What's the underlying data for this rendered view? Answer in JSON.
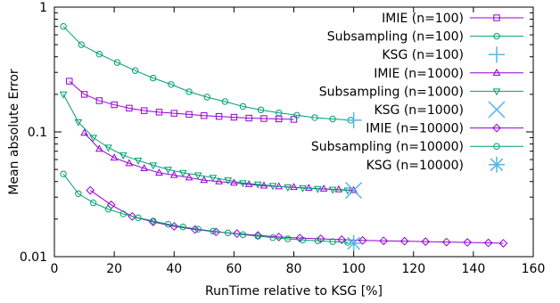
{
  "chart_data": {
    "type": "line",
    "xlabel": "RunTime relative to KSG [%]",
    "ylabel": "Mean absolute Error",
    "xlim": [
      0,
      160
    ],
    "ylim": [
      0.01,
      1
    ],
    "yscale": "log",
    "x_ticks": [
      "0",
      "20",
      "40",
      "60",
      "80",
      "100",
      "120",
      "140",
      "160"
    ],
    "y_ticks": [
      "0.01",
      "0.1",
      "1"
    ],
    "legend_position": "top-right",
    "series": [
      {
        "name": "IMIE (n=100)",
        "color": "#9400d3",
        "marker": "square",
        "x": [
          5,
          10,
          15,
          20,
          25,
          30,
          35,
          40,
          45,
          50,
          55,
          60,
          65,
          70,
          75,
          80
        ],
        "y": [
          0.255,
          0.2,
          0.178,
          0.165,
          0.155,
          0.148,
          0.144,
          0.141,
          0.138,
          0.135,
          0.133,
          0.131,
          0.129,
          0.128,
          0.127,
          0.126
        ]
      },
      {
        "name": "Subsampling (n=100)",
        "color": "#009e73",
        "marker": "circle",
        "x": [
          3,
          9,
          15,
          21,
          27,
          33,
          39,
          45,
          51,
          57,
          63,
          69,
          75,
          81,
          87,
          93,
          99
        ],
        "y": [
          0.7,
          0.5,
          0.42,
          0.36,
          0.31,
          0.27,
          0.24,
          0.21,
          0.19,
          0.175,
          0.16,
          0.15,
          0.142,
          0.136,
          0.13,
          0.127,
          0.124
        ]
      },
      {
        "name": "KSG (n=100)",
        "color": "#56b4e9",
        "marker": "plus",
        "x": [
          100
        ],
        "y": [
          0.124
        ]
      },
      {
        "name": "IMIE (n=1000)",
        "color": "#9400d3",
        "marker": "triangle-up",
        "x": [
          10,
          15,
          20,
          25,
          30,
          35,
          40,
          45,
          50,
          55,
          60,
          65,
          70,
          75,
          80,
          85,
          90,
          95,
          100
        ],
        "y": [
          0.098,
          0.073,
          0.062,
          0.056,
          0.051,
          0.047,
          0.045,
          0.043,
          0.041,
          0.04,
          0.039,
          0.038,
          0.037,
          0.0365,
          0.036,
          0.0355,
          0.035,
          0.0345,
          0.034
        ]
      },
      {
        "name": "Subsampling (n=1000)",
        "color": "#009e73",
        "marker": "triangle-down",
        "x": [
          3,
          8,
          13,
          18,
          23,
          28,
          33,
          38,
          43,
          48,
          53,
          58,
          63,
          68,
          73,
          78,
          83,
          88,
          93,
          98
        ],
        "y": [
          0.2,
          0.12,
          0.09,
          0.075,
          0.065,
          0.059,
          0.054,
          0.05,
          0.047,
          0.045,
          0.043,
          0.041,
          0.039,
          0.038,
          0.037,
          0.036,
          0.0355,
          0.035,
          0.0345,
          0.034
        ]
      },
      {
        "name": "KSG (n=1000)",
        "color": "#56b4e9",
        "marker": "x",
        "x": [
          100
        ],
        "y": [
          0.034
        ]
      },
      {
        "name": "IMIE (n=10000)",
        "color": "#9400d3",
        "marker": "diamond",
        "x": [
          12,
          19,
          26,
          33,
          40,
          47,
          54,
          61,
          68,
          75,
          82,
          89,
          96,
          103,
          110,
          117,
          124,
          131,
          138,
          145,
          150
        ],
        "y": [
          0.034,
          0.026,
          0.021,
          0.019,
          0.0175,
          0.0165,
          0.0158,
          0.0153,
          0.0148,
          0.0144,
          0.0141,
          0.0139,
          0.0137,
          0.0135,
          0.0134,
          0.0133,
          0.0132,
          0.0131,
          0.013,
          0.0129,
          0.0128
        ]
      },
      {
        "name": "Subsampling (n=10000)",
        "color": "#009e73",
        "marker": "circle",
        "x": [
          3,
          8,
          13,
          18,
          23,
          28,
          33,
          38,
          43,
          48,
          53,
          58,
          63,
          68,
          73,
          78,
          83,
          88,
          93,
          98
        ],
        "y": [
          0.046,
          0.032,
          0.027,
          0.024,
          0.022,
          0.0205,
          0.0193,
          0.0182,
          0.0173,
          0.0166,
          0.016,
          0.0155,
          0.015,
          0.0146,
          0.0142,
          0.0139,
          0.0136,
          0.0134,
          0.0132,
          0.013
        ]
      },
      {
        "name": "KSG (n=10000)",
        "color": "#56b4e9",
        "marker": "star",
        "x": [
          100
        ],
        "y": [
          0.0128
        ]
      }
    ]
  }
}
